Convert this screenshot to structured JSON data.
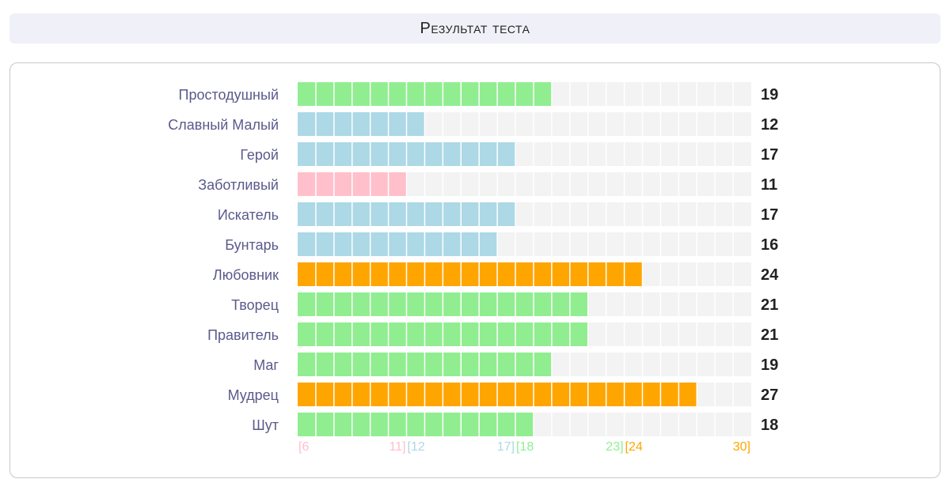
{
  "header": {
    "title": "Результат теста"
  },
  "chart_data": {
    "type": "bar",
    "orientation": "horizontal",
    "categories": [
      "Простодушный",
      "Славный Малый",
      "Герой",
      "Заботливый",
      "Искатель",
      "Бунтарь",
      "Любовник",
      "Творец",
      "Правитель",
      "Маг",
      "Мудрец",
      "Шут"
    ],
    "values": [
      19,
      12,
      17,
      11,
      17,
      16,
      24,
      21,
      21,
      19,
      27,
      18
    ],
    "xlim": [
      6,
      30
    ],
    "bands": [
      {
        "label_start": "[6",
        "label_end": "11]",
        "from": 6,
        "to": 11,
        "color": "#ffc0cb"
      },
      {
        "label_start": "[12",
        "label_end": "17]",
        "from": 12,
        "to": 17,
        "color": "#add8e6"
      },
      {
        "label_start": "[18",
        "label_end": "23]",
        "from": 18,
        "to": 23,
        "color": "#90ee90"
      },
      {
        "label_start": "[24",
        "label_end": "30]",
        "from": 24,
        "to": 30,
        "color": "#ffa500"
      }
    ],
    "track_color": "#f3f3f3",
    "label_color": "#5a5a8c"
  }
}
